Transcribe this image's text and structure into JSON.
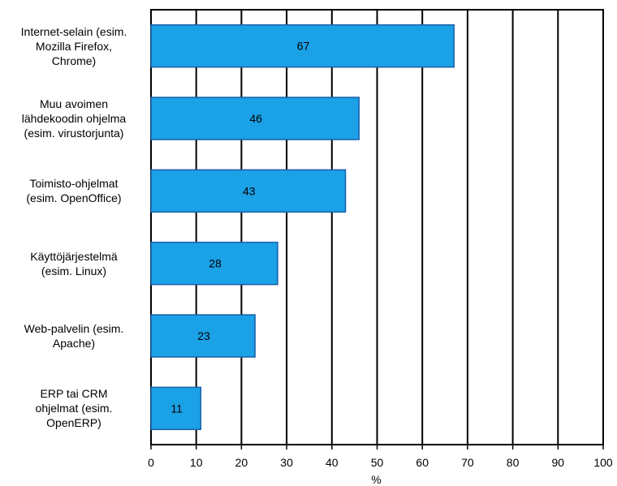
{
  "chart_data": {
    "type": "bar",
    "orientation": "horizontal",
    "categories": [
      "Internet-selain (esim.\nMozilla Firefox,\nChrome)",
      "Muu avoimen\nlähdekoodin ohjelma\n(esim. virustorjunta)",
      "Toimisto-ohjelmat\n(esim. OpenOffice)",
      "Käyttöjärjestelmä\n(esim. Linux)",
      "Web-palvelin (esim.\nApache)",
      "ERP tai CRM\nohjelmat (esim.\nOpenERP)"
    ],
    "values": [
      67,
      46,
      43,
      28,
      23,
      11
    ],
    "data_labels": [
      "67",
      "46",
      "43",
      "28",
      "23",
      "11"
    ],
    "xlabel": "%",
    "ylabel": "",
    "xlim": [
      0,
      100
    ],
    "ticks": [
      "0",
      "10",
      "20",
      "30",
      "40",
      "50",
      "60",
      "70",
      "80",
      "90",
      "100"
    ],
    "grid": "vertical",
    "legend": "none",
    "bar_color": "#1aa1e6",
    "bar_edge_color": "#1b5fa8"
  }
}
